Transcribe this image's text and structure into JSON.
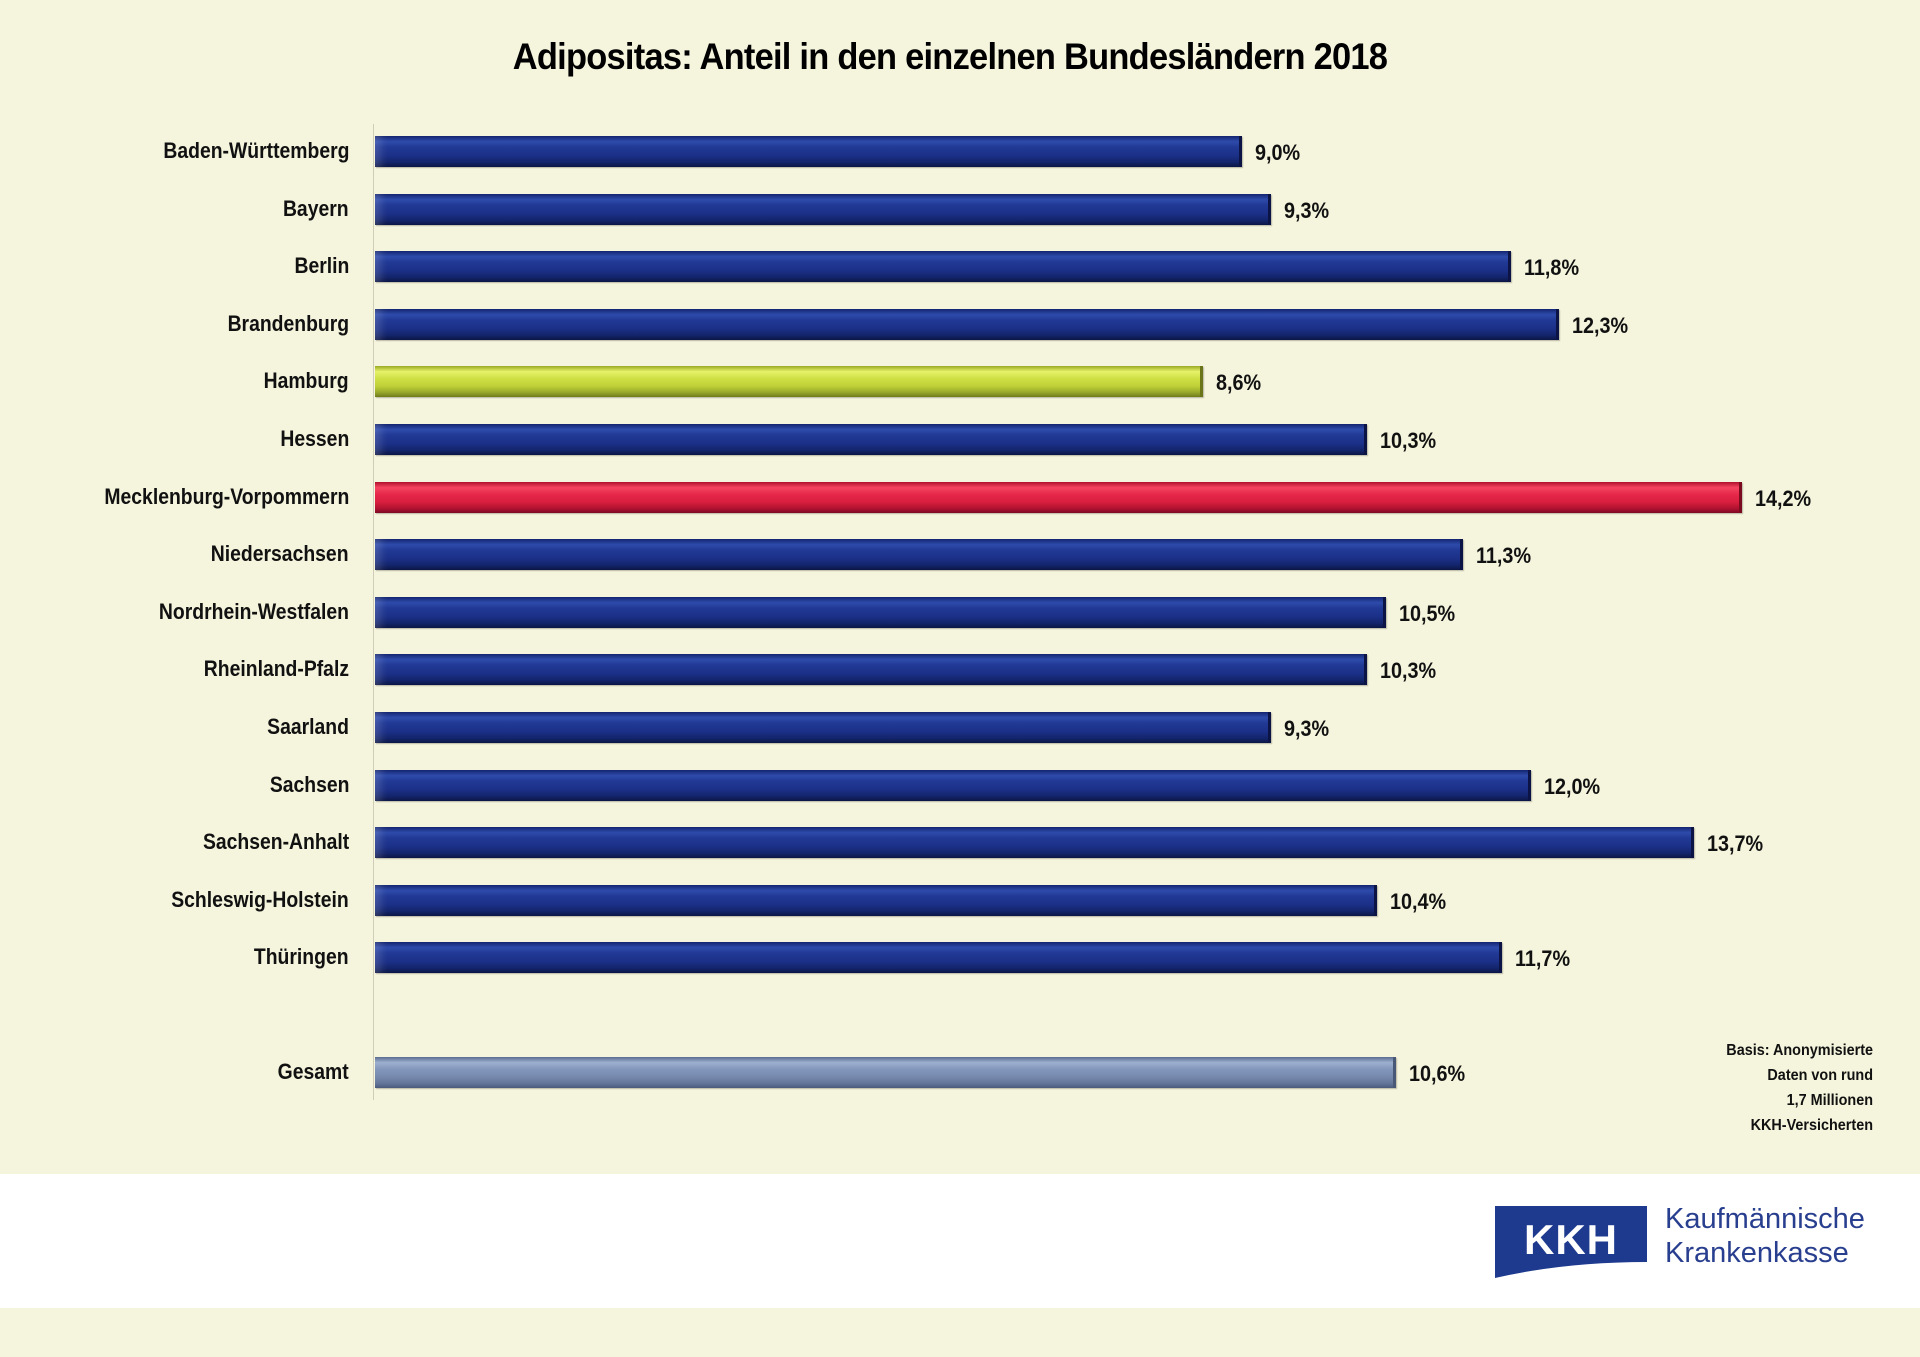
{
  "colors": {
    "background": "#f5f4dc",
    "bar_default": "#1f3388",
    "bar_min": "#c8da42",
    "bar_max": "#e02846",
    "bar_total": "#7a8cb0",
    "logo_blue": "#1e3a8e"
  },
  "chart_data": {
    "type": "bar",
    "orientation": "horizontal",
    "title": "Adipositas: Anteil in den einzelnen Bundesländern 2018",
    "xlabel": "",
    "ylabel": "",
    "unit": "%",
    "xlim": [
      0,
      14.5
    ],
    "grid": false,
    "categories": [
      "Baden-Württemberg",
      "Bayern",
      "Berlin",
      "Brandenburg",
      "Hamburg",
      "Hessen",
      "Mecklenburg-Vorpommern",
      "Niedersachsen",
      "Nordrhein-Westfalen",
      "Rheinland-Pfalz",
      "Saarland",
      "Sachsen",
      "Sachsen-Anhalt",
      "Schleswig-Holstein",
      "Thüringen",
      "Gesamt"
    ],
    "values": [
      9.0,
      9.3,
      11.8,
      12.3,
      8.6,
      10.3,
      14.2,
      11.3,
      10.5,
      10.3,
      9.3,
      12.0,
      13.7,
      10.4,
      11.7,
      10.6
    ],
    "value_labels": [
      "9,0%",
      "9,3%",
      "11,8%",
      "12,3%",
      "8,6%",
      "10,3%",
      "14,2%",
      "11,3%",
      "10,5%",
      "10,3%",
      "9,3%",
      "12,0%",
      "13,7%",
      "10,4%",
      "11,7%",
      "10,6%"
    ],
    "highlights": {
      "Hamburg": "lowest",
      "Mecklenburg-Vorpommern": "highest",
      "Gesamt": "total"
    }
  },
  "footnote": {
    "lines": [
      "Basis: Anonymisierte",
      "Daten von rund",
      "1,7 Millionen",
      "KKH-Versicherten"
    ]
  },
  "logo": {
    "abbr": "KKH",
    "name_line1": "Kaufmännische",
    "name_line2": "Krankenkasse"
  }
}
